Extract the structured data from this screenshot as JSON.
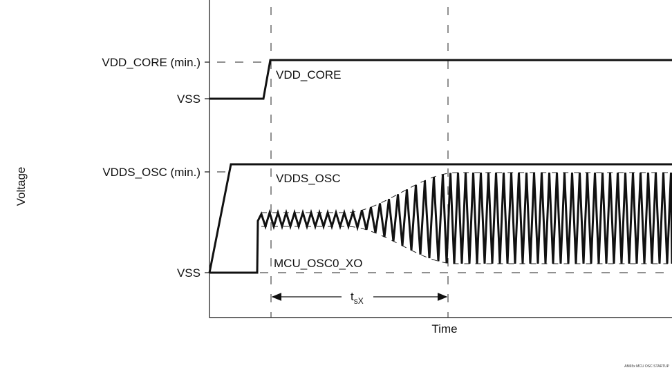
{
  "axis": {
    "y_label": "Voltage",
    "x_label": "Time"
  },
  "levels": {
    "core_min": "VDD_CORE (min.)",
    "core_vss": "VSS",
    "osc_min": "VDDS_OSC (min.)",
    "osc_vss": "VSS"
  },
  "signals": {
    "vdd_core": "VDD_CORE",
    "vdds_osc": "VDDS_OSC",
    "xo": "MCU_OSC0_XO"
  },
  "interval": {
    "t_main": "t",
    "t_sub": "sX"
  },
  "figure_code": "AM65x MCU OSC STARTUP",
  "colors": {
    "line": "#111111",
    "dash": "#222222"
  }
}
